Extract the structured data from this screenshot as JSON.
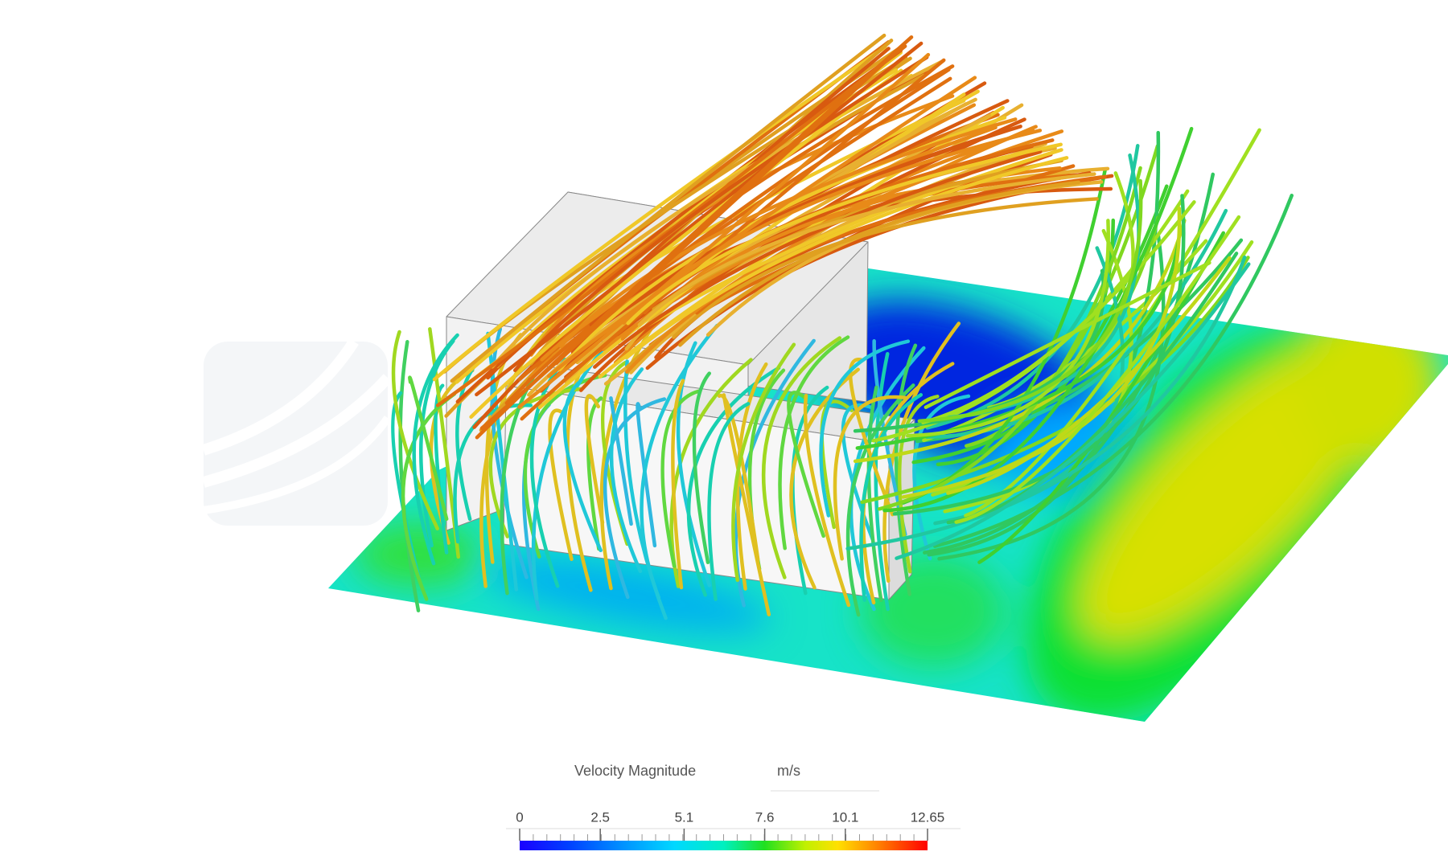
{
  "legend": {
    "title": "Velocity Magnitude",
    "unit": "m/s",
    "ticks": [
      0,
      2.5,
      5.1,
      7.6,
      10.1,
      12.65
    ]
  }
}
